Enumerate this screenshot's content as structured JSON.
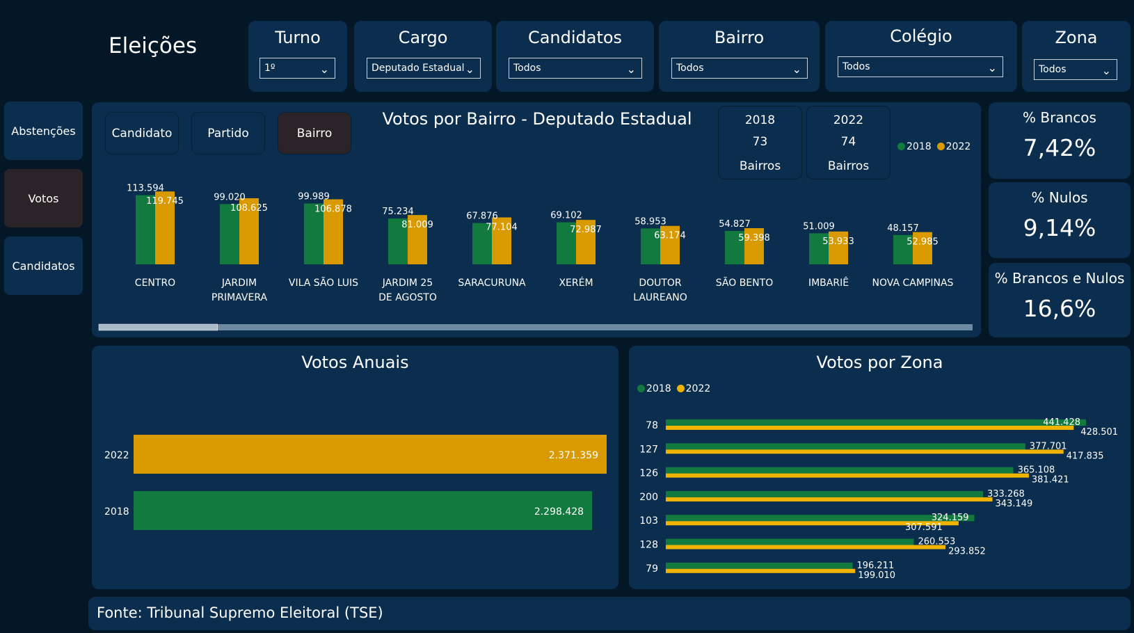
{
  "app_title": "Eleições",
  "colors": {
    "green": "#127a3e",
    "gold": "#d89a00",
    "gold_line": "#f0b400",
    "panel": "#0b2d4e",
    "background": "#041727"
  },
  "filters": [
    {
      "label": "Turno",
      "value": "1º"
    },
    {
      "label": "Cargo",
      "value": "Deputado Estadual"
    },
    {
      "label": "Candidatos",
      "value": "Todos"
    },
    {
      "label": "Bairro",
      "value": "Todos"
    },
    {
      "label": "Colégio",
      "value": "Todos"
    },
    {
      "label": "Zona",
      "value": "Todos"
    }
  ],
  "nav": [
    {
      "label": "Abstenções",
      "active": false
    },
    {
      "label": "Votos",
      "active": true
    },
    {
      "label": "Candidatos",
      "active": false
    }
  ],
  "segments": [
    {
      "label": "Candidato",
      "active": false
    },
    {
      "label": "Partido",
      "active": false
    },
    {
      "label": "Bairro",
      "active": true
    }
  ],
  "cards": [
    {
      "year": "2018",
      "count": "73",
      "caption": "Bairros"
    },
    {
      "year": "2022",
      "count": "74",
      "caption": "Bairros"
    }
  ],
  "kpis": [
    {
      "label": "% Brancos",
      "value": "7,42%"
    },
    {
      "label": "% Nulos",
      "value": "9,14%"
    },
    {
      "label": "% Brancos e Nulos",
      "value": "16,6%"
    }
  ],
  "footer": "Fonte: Tribunal Supremo Eleitoral (TSE)",
  "chart_data": [
    {
      "type": "bar",
      "title": "Votos por Bairro - Deputado Estadual",
      "legend": [
        "2018",
        "2022"
      ],
      "legend_position": "top-right",
      "scroll_position": 0.12,
      "categories": [
        "CENTRO",
        "JARDIM PRIMAVERA",
        "VILA SÃO LUIS",
        "JARDIM 25 DE AGOSTO",
        "SARACURUNA",
        "XERÉM",
        "DOUTOR LAUREANO",
        "SÃO BENTO",
        "IMBARIÊ",
        "NOVA CAMPINAS"
      ],
      "series": [
        {
          "name": "2018",
          "values": [
            113594,
            99020,
            99989,
            75234,
            67876,
            69102,
            58953,
            54827,
            51009,
            48157
          ],
          "labels": [
            "113.594",
            "99.020",
            "99.989",
            "75.234",
            "67.876",
            "69.102",
            "58.953",
            "54.827",
            "51.009",
            "48.157"
          ]
        },
        {
          "name": "2022",
          "values": [
            119745,
            108625,
            106878,
            81009,
            77104,
            72987,
            63174,
            59398,
            53933,
            52985
          ],
          "labels": [
            "119.745",
            "108.625",
            "106.878",
            "81.009",
            "77.104",
            "72.987",
            "63.174",
            "59.398",
            "53.933",
            "52.985"
          ]
        }
      ]
    },
    {
      "type": "bar",
      "orientation": "horizontal",
      "title": "Votos Anuais",
      "categories": [
        "2022",
        "2018"
      ],
      "values": [
        2371359,
        2298428
      ],
      "labels": [
        "2.371.359",
        "2.298.428"
      ]
    },
    {
      "type": "bar",
      "orientation": "horizontal",
      "title": "Votos por Zona",
      "legend": [
        "2018",
        "2022"
      ],
      "legend_position": "top-left",
      "categories": [
        "78",
        "127",
        "126",
        "200",
        "103",
        "128",
        "79"
      ],
      "series": [
        {
          "name": "2018",
          "values": [
            441428,
            377701,
            365108,
            333268,
            324159,
            260553,
            196211
          ],
          "labels": [
            "441.428",
            "377.701",
            "365.108",
            "333.268",
            "324.159",
            "260.553",
            "196.211"
          ]
        },
        {
          "name": "2022",
          "values": [
            428501,
            417835,
            381421,
            343149,
            307591,
            293852,
            199010
          ],
          "labels": [
            "428.501",
            "417.835",
            "381.421",
            "343.149",
            "307.591",
            "293.852",
            "199.010"
          ]
        }
      ]
    }
  ]
}
